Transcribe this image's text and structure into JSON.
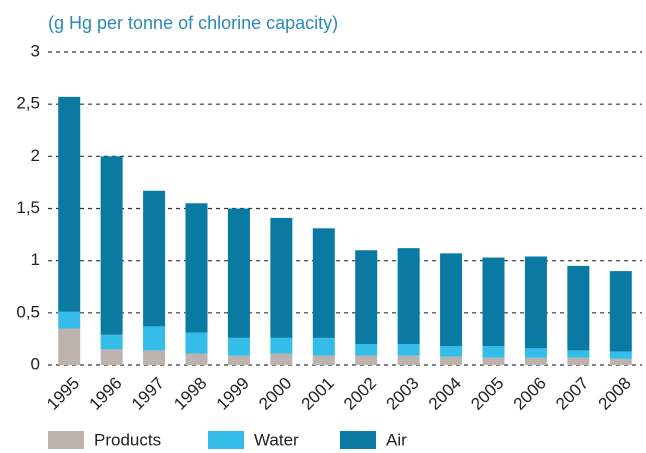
{
  "chart_data": {
    "type": "stacked_bar",
    "title": "(g Hg per tonne of chlorine capacity)",
    "categories": [
      "1995",
      "1996",
      "1997",
      "1998",
      "1999",
      "2000",
      "2001",
      "2002",
      "2003",
      "2004",
      "2005",
      "2006",
      "2007",
      "2008"
    ],
    "series": [
      {
        "name": "Products",
        "color": "#bdb3ae",
        "values": [
          0.35,
          0.15,
          0.14,
          0.11,
          0.09,
          0.11,
          0.09,
          0.09,
          0.09,
          0.08,
          0.07,
          0.07,
          0.07,
          0.06
        ]
      },
      {
        "name": "Water",
        "color": "#33bde8",
        "values": [
          0.16,
          0.14,
          0.23,
          0.2,
          0.17,
          0.15,
          0.17,
          0.11,
          0.11,
          0.1,
          0.11,
          0.09,
          0.07,
          0.07
        ]
      },
      {
        "name": "Air",
        "color": "#0a7aa3",
        "values": [
          2.06,
          1.71,
          1.3,
          1.24,
          1.24,
          1.15,
          1.05,
          0.9,
          0.92,
          0.89,
          0.85,
          0.88,
          0.81,
          0.77
        ]
      }
    ],
    "ylim": [
      0,
      3
    ],
    "yticks": [
      0,
      {
        "value": 0.5,
        "label": "0,5"
      },
      1,
      {
        "value": 1.5,
        "label": "1,5"
      },
      2,
      {
        "value": 2.5,
        "label": "2,5"
      },
      3
    ],
    "grid": true,
    "legend": "bottom"
  }
}
